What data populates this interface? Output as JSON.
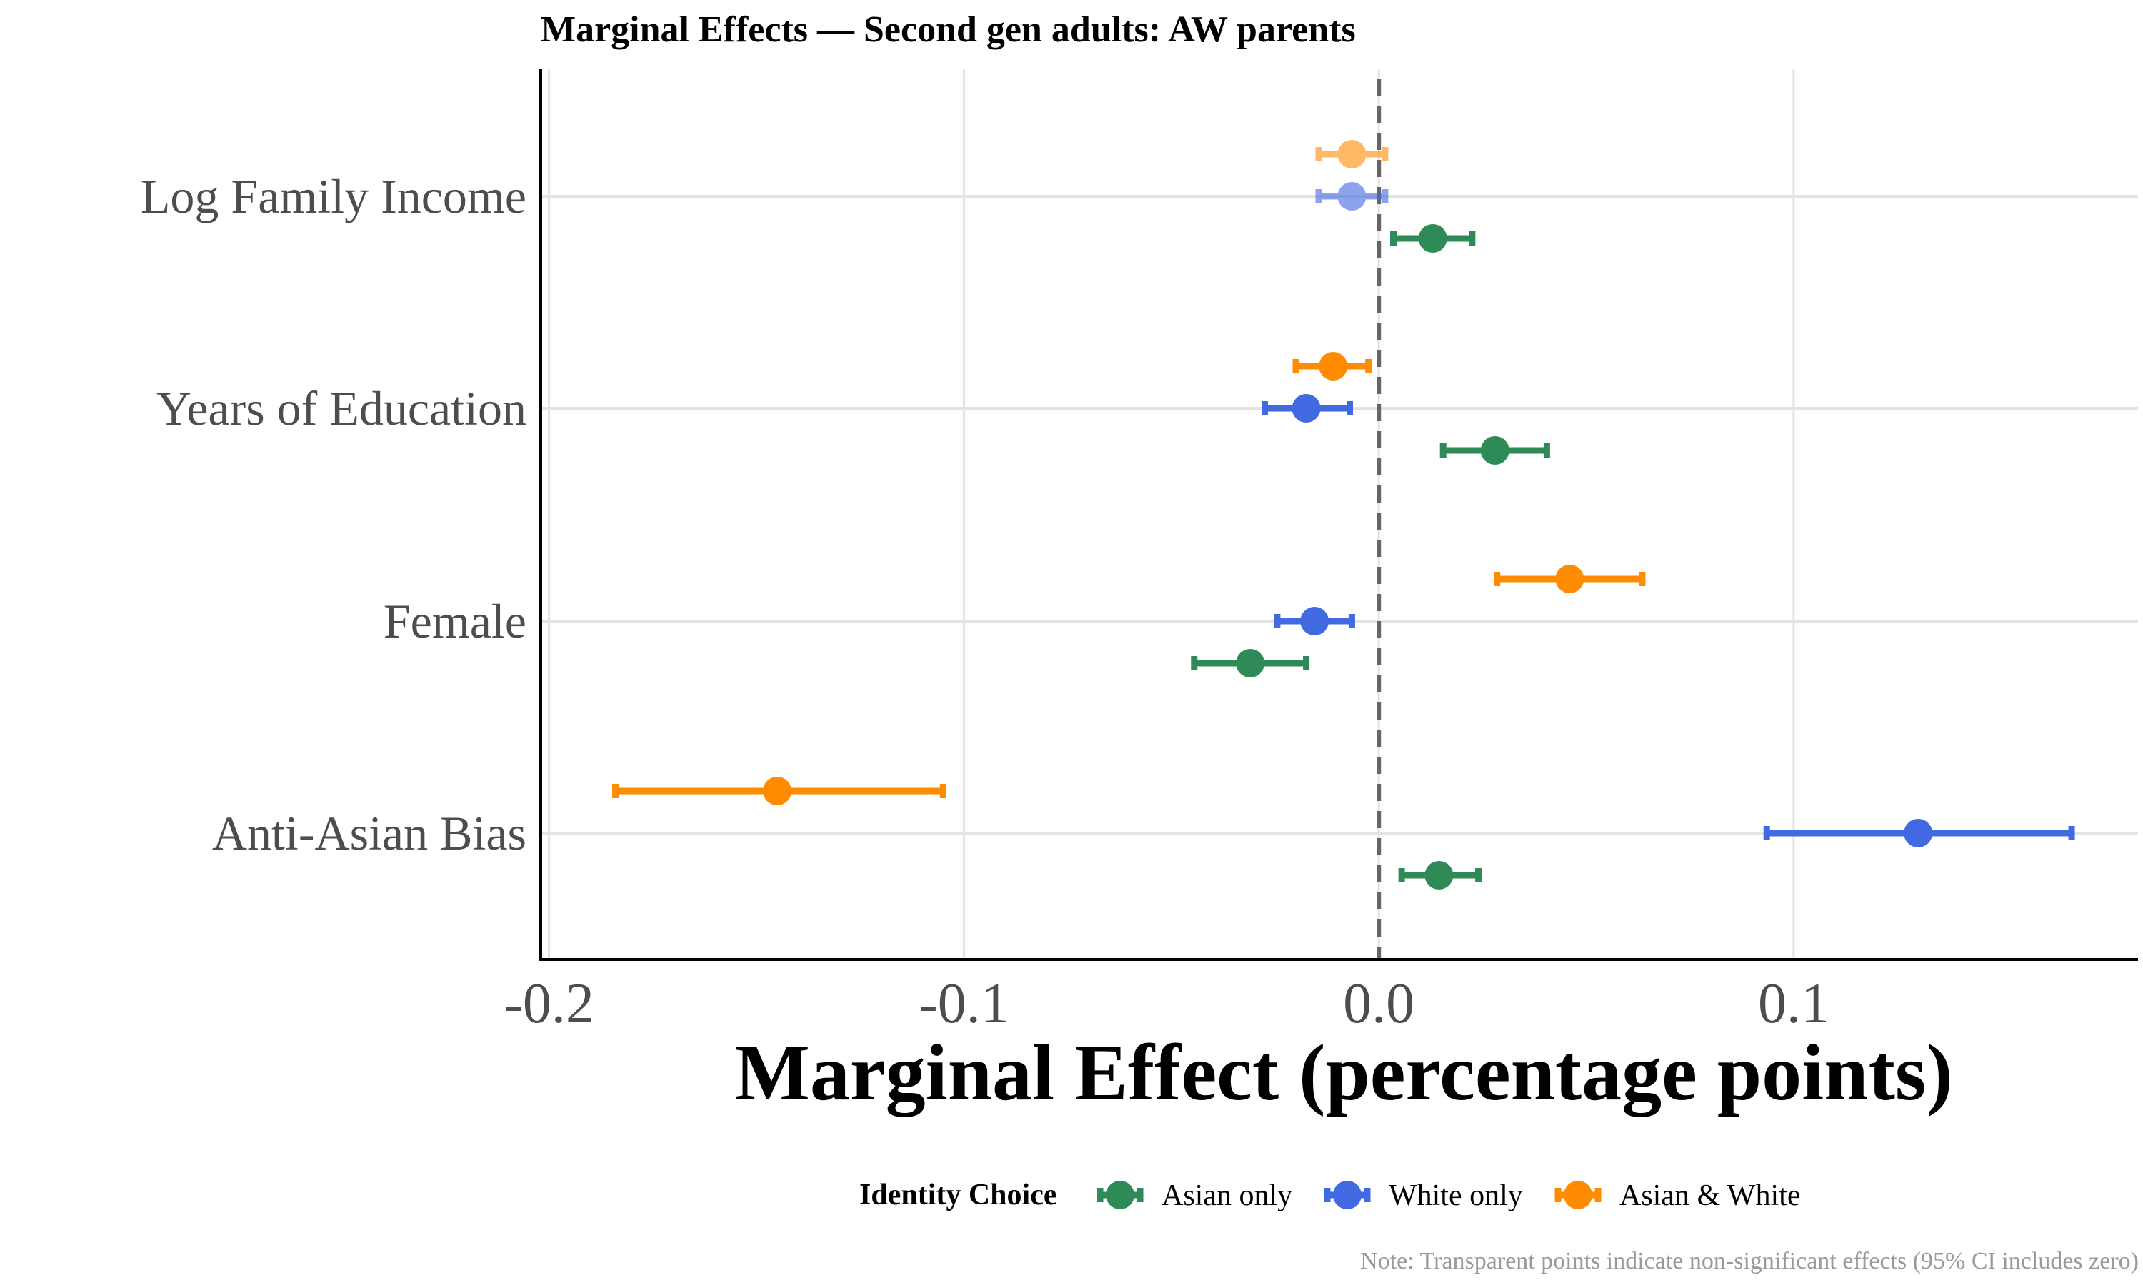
{
  "chart_data": {
    "type": "scatter",
    "title": "Marginal Effects — Second gen adults: AW parents",
    "xlabel": "Marginal Effect (percentage points)",
    "ylabel": "",
    "xlim": [
      -0.202,
      0.183
    ],
    "x_ticks": [
      -0.2,
      -0.1,
      0.0,
      0.1
    ],
    "x_tick_labels": [
      "-0.2",
      "-0.1",
      "0.0",
      "0.1"
    ],
    "reference_line": 0.0,
    "categories": [
      "Log Family Income",
      "Years of Education",
      "Female",
      "Anti-Asian Bias"
    ],
    "legend_title": "Identity Choice",
    "legend_position": "bottom",
    "grid": true,
    "series": [
      {
        "name": "Asian only",
        "color": "#2e8b57",
        "points": [
          {
            "category": "Log Family Income",
            "estimate": 0.013,
            "ci_low": 0.0035,
            "ci_high": 0.0225,
            "significant": true
          },
          {
            "category": "Years of Education",
            "estimate": 0.028,
            "ci_low": 0.0155,
            "ci_high": 0.0405,
            "significant": true
          },
          {
            "category": "Female",
            "estimate": -0.031,
            "ci_low": -0.0445,
            "ci_high": -0.0175,
            "significant": true
          },
          {
            "category": "Anti-Asian Bias",
            "estimate": 0.0145,
            "ci_low": 0.0055,
            "ci_high": 0.024,
            "significant": true
          }
        ]
      },
      {
        "name": "White only",
        "color": "#4169e1",
        "points": [
          {
            "category": "Log Family Income",
            "estimate": -0.0065,
            "ci_low": -0.0145,
            "ci_high": 0.0015,
            "significant": false
          },
          {
            "category": "Years of Education",
            "estimate": -0.0175,
            "ci_low": -0.0275,
            "ci_high": -0.007,
            "significant": true
          },
          {
            "category": "Female",
            "estimate": -0.0155,
            "ci_low": -0.0245,
            "ci_high": -0.0065,
            "significant": true
          },
          {
            "category": "Anti-Asian Bias",
            "estimate": 0.13,
            "ci_low": 0.0935,
            "ci_high": 0.167,
            "significant": true
          }
        ]
      },
      {
        "name": "Asian & White",
        "color": "#ff8c00",
        "points": [
          {
            "category": "Log Family Income",
            "estimate": -0.0065,
            "ci_low": -0.0145,
            "ci_high": 0.0015,
            "significant": false
          },
          {
            "category": "Years of Education",
            "estimate": -0.011,
            "ci_low": -0.02,
            "ci_high": -0.0025,
            "significant": true
          },
          {
            "category": "Female",
            "estimate": 0.046,
            "ci_low": 0.0285,
            "ci_high": 0.0635,
            "significant": true
          },
          {
            "category": "Anti-Asian Bias",
            "estimate": -0.145,
            "ci_low": -0.184,
            "ci_high": -0.105,
            "significant": true
          }
        ]
      }
    ],
    "note": "Note: Transparent points indicate non-significant effects (95% CI includes zero)"
  }
}
